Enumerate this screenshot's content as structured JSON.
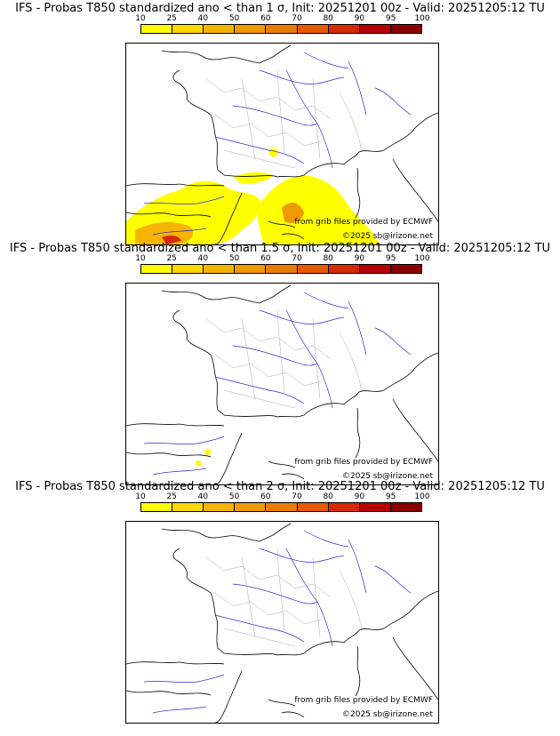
{
  "panels": [
    {
      "title": "IFS - Probas T850  standardized ano < than 1 σ, Init: 20251201 00z - Valid: 20251205:12 TU",
      "sigma": "1"
    },
    {
      "title": "IFS - Probas T850  standardized ano < than 1.5 σ, Init: 20251201 00z - Valid: 20251205:12 TU",
      "sigma": "1.5"
    },
    {
      "title": "IFS - Probas T850  standardized ano < than 2 σ, Init: 20251201 00z - Valid: 20251205:12 TU",
      "sigma": "2"
    }
  ],
  "colorbar": {
    "ticks": [
      "10",
      "25",
      "40",
      "50",
      "60",
      "70",
      "80",
      "90",
      "95",
      "100"
    ],
    "colors": [
      "#ffff00",
      "#ffd700",
      "#f5b400",
      "#ef9a00",
      "#ea7d00",
      "#e85a00",
      "#d62a00",
      "#b80000",
      "#8a0000"
    ]
  },
  "credits": {
    "source": "from grib files provided by ECMWF",
    "copyright": "©2025 sb@irizone.net"
  }
}
